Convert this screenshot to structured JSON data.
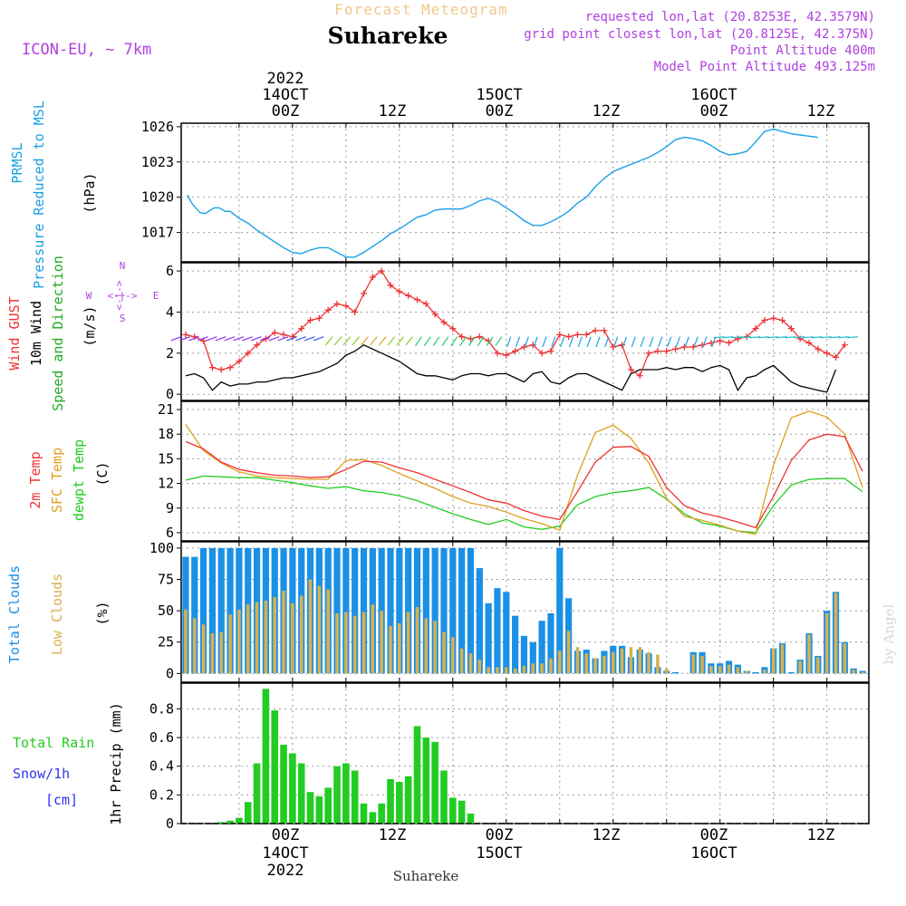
{
  "header": {
    "product_title": "Forecast Meteogram",
    "location": "Suhareke",
    "model": "ICON-EU, ~ 7km",
    "requested": "requested lon,lat (20.8253E, 42.3579N)",
    "grid_point": "grid point closest lon,lat (20.8125E, 42.375N)",
    "point_altitude": "Point Altitude 400m",
    "model_altitude": "Model Point Altitude 493.125m",
    "footer_location": "Suhareke",
    "credit": "by Angel"
  },
  "colors": {
    "pressure": "#1aa0e6",
    "gust": "#ee3333",
    "wind": "#000000",
    "t2m": "#ee3333",
    "sfc": "#e0a020",
    "dewpt": "#22cc22",
    "total_clouds": "#1a90e6",
    "low_clouds": "#d8b050",
    "rain": "#22cc22",
    "snow": "#3333ee",
    "label_purple": "#b040e0"
  },
  "time_axis": {
    "top": [
      {
        "h": 0,
        "l1": "2022",
        "l2": "14OCT",
        "l3": "00Z"
      },
      {
        "h": 12,
        "l3": "12Z"
      },
      {
        "h": 24,
        "l2": "15OCT",
        "l3": "00Z"
      },
      {
        "h": 36,
        "l3": "12Z"
      },
      {
        "h": 48,
        "l2": "16OCT",
        "l3": "00Z"
      },
      {
        "h": 60,
        "l3": "12Z"
      }
    ],
    "bottom": [
      {
        "h": 0,
        "l1": "00Z",
        "l2": "14OCT",
        "l3": "2022"
      },
      {
        "h": 12,
        "l1": "12Z"
      },
      {
        "h": 24,
        "l1": "00Z",
        "l2": "15OCT"
      },
      {
        "h": 36,
        "l1": "12Z"
      },
      {
        "h": 48,
        "l1": "00Z",
        "l2": "16OCT"
      },
      {
        "h": 60,
        "l1": "12Z"
      }
    ]
  },
  "panel_labels": {
    "pressure": {
      "name": "PRMSL",
      "desc": "Pressure Reduced to MSL",
      "unit": "(hPa)"
    },
    "wind": {
      "gust": "Wind GUST",
      "wind10": "10m Wind",
      "dir": "Speed and Direction",
      "unit": "(m/s)",
      "compass": {
        "n": "N",
        "s": "S",
        "w": "W",
        "e": "E",
        "arrows": "<-|->"
      }
    },
    "temp": {
      "t2m": "2m Temp",
      "sfc": "SFC Temp",
      "dewpt": "dewpt Temp",
      "unit": "(C)"
    },
    "clouds": {
      "total": "Total Clouds",
      "low": "Low Clouds",
      "unit": "(%)"
    },
    "precip": {
      "rain": "Total  Rain",
      "snow": "Snow/1h",
      "snow_unit": "[cm]",
      "axis": "1hr Precip (mm)"
    }
  },
  "chart_data": [
    {
      "type": "line",
      "title": "PRMSL Pressure Reduced to MSL",
      "ylabel": "(hPa)",
      "ylim": [
        1014.5,
        1026.3
      ],
      "yticks": [
        1017,
        1020,
        1023,
        1026
      ],
      "x_hours": [
        -11.8,
        -11.4,
        -11,
        -10.4,
        -9.8,
        -9.2,
        -8.8,
        -8.2,
        -7.6,
        -7,
        -6,
        -5,
        -4,
        -3,
        -2.4,
        -1.8,
        -1,
        0,
        1,
        2,
        3,
        4,
        5,
        6,
        7,
        8,
        9,
        10,
        11,
        12,
        13,
        14,
        15,
        16,
        17,
        18,
        19,
        20,
        21,
        22,
        23,
        24,
        25,
        26,
        27,
        28,
        29,
        30,
        31,
        32,
        33,
        34,
        35,
        36,
        37,
        38,
        39,
        40,
        41,
        42,
        43,
        44,
        45,
        46,
        47,
        48,
        49,
        50,
        51,
        52,
        53,
        54,
        55,
        56,
        57,
        58,
        59,
        60,
        61,
        62,
        63,
        64,
        65
      ],
      "series": [
        {
          "name": "PRMSL",
          "values": [
            1020.2,
            1019.6,
            1019.2,
            1018.7,
            1018.6,
            1018.9,
            1019.1,
            1019.1,
            1018.8,
            1018.8,
            1018.2,
            1017.8,
            1017.2,
            1016.7,
            1016.4,
            1016.1,
            1015.7,
            1015.3,
            1015.2,
            1015.5,
            1015.7,
            1015.7,
            1015.3,
            1014.9,
            1014.9,
            1015.3,
            1015.8,
            1016.3,
            1016.9,
            1017.3,
            1017.8,
            1018.3,
            1018.5,
            1018.9,
            1019.0,
            1019.0,
            1019.0,
            1019.3,
            1019.7,
            1019.9,
            1019.6,
            1019.1,
            1018.6,
            1018.0,
            1017.6,
            1017.6,
            1017.9,
            1018.3,
            1018.8,
            1019.5,
            1020.0,
            1020.9,
            1021.6,
            1022.2,
            1022.5,
            1022.8,
            1023.1,
            1023.4,
            1023.8,
            1024.3,
            1024.9,
            1025.1,
            1025.0,
            1024.8,
            1024.4,
            1023.9,
            1023.6,
            1023.7,
            1023.9,
            1024.7,
            1025.6,
            1025.8,
            1025.6,
            1025.4,
            1025.3,
            1025.2,
            1025.1
          ]
        }
      ]
    },
    {
      "type": "line",
      "title": "Wind GUST / 10m Wind Speed and Direction",
      "ylabel": "(m/s)",
      "ylim": [
        -0.3,
        6.4
      ],
      "yticks": [
        0,
        2,
        4,
        6
      ],
      "x_hours": [
        -12,
        -11,
        -10,
        -9,
        -8,
        -7,
        -6,
        -5,
        -4,
        -3,
        -2,
        -1,
        0,
        1,
        2,
        3,
        4,
        5,
        6,
        7,
        8,
        9,
        10,
        11,
        12,
        13,
        14,
        15,
        16,
        17,
        18,
        19,
        20,
        21,
        22,
        23,
        24,
        25,
        26,
        27,
        28,
        29,
        30,
        31,
        32,
        33,
        34,
        35,
        36,
        37,
        38,
        39,
        40,
        41,
        42,
        43,
        44,
        45,
        46,
        47,
        48,
        49,
        50,
        51,
        52,
        53,
        54,
        55,
        56,
        57,
        58,
        59,
        60,
        61,
        62,
        63,
        64
      ],
      "series": [
        {
          "name": "Wind GUST",
          "values": [
            2.9,
            2.8,
            2.6,
            1.3,
            1.2,
            1.3,
            1.6,
            2.0,
            2.4,
            2.7,
            3.0,
            2.9,
            2.8,
            3.2,
            3.6,
            3.7,
            4.1,
            4.4,
            4.3,
            4.0,
            4.9,
            5.7,
            6.0,
            5.3,
            5.0,
            4.8,
            4.6,
            4.4,
            3.9,
            3.5,
            3.2,
            2.8,
            2.7,
            2.8,
            2.6,
            2.0,
            1.9,
            2.1,
            2.3,
            2.4,
            2.0,
            2.1,
            2.9,
            2.8,
            2.9,
            2.9,
            3.1,
            3.1,
            2.3,
            2.4,
            1.2,
            0.9,
            2.0,
            2.1,
            2.1,
            2.2,
            2.3,
            2.3,
            2.4,
            2.5,
            2.6,
            2.5,
            2.7,
            2.8,
            3.2,
            3.6,
            3.7,
            3.6,
            3.2,
            2.7,
            2.5,
            2.2,
            2.0,
            1.8,
            2.4
          ]
        },
        {
          "name": "10m Wind",
          "values": [
            0.9,
            1.0,
            0.8,
            0.2,
            0.6,
            0.4,
            0.5,
            0.5,
            0.6,
            0.6,
            0.7,
            0.8,
            0.8,
            0.9,
            1.0,
            1.1,
            1.3,
            1.5,
            1.9,
            2.1,
            2.4,
            2.2,
            2.0,
            1.8,
            1.6,
            1.3,
            1.0,
            0.9,
            0.9,
            0.8,
            0.7,
            0.9,
            1.0,
            1.0,
            0.9,
            1.0,
            1.0,
            0.8,
            0.6,
            1.0,
            1.1,
            0.6,
            0.5,
            0.8,
            1.0,
            1.0,
            0.8,
            0.6,
            0.4,
            0.2,
            1.0,
            1.2,
            1.2,
            1.2,
            1.3,
            1.2,
            1.3,
            1.3,
            1.1,
            1.3,
            1.4,
            1.2,
            0.2,
            0.8,
            0.9,
            1.2,
            1.4,
            1.0,
            0.6,
            0.4,
            0.3,
            0.2,
            0.1,
            1.2
          ]
        }
      ]
    },
    {
      "type": "line",
      "title": "2m Temp / SFC Temp / dewpt Temp",
      "ylabel": "(C)",
      "ylim": [
        5,
        22
      ],
      "yticks": [
        6,
        9,
        12,
        15,
        18,
        21
      ],
      "x_hours": [
        -12,
        -10,
        -8,
        -6,
        -4,
        -2,
        0,
        2,
        4,
        6,
        8,
        10,
        12,
        14,
        16,
        18,
        20,
        22,
        24,
        26,
        28,
        30,
        32,
        34,
        36,
        38,
        40,
        42,
        44,
        46,
        48,
        50,
        52,
        54,
        56,
        58,
        60,
        62,
        64
      ],
      "series": [
        {
          "name": "2m Temp",
          "values": [
            17.1,
            16.2,
            14.6,
            13.7,
            13.3,
            13.0,
            12.9,
            12.7,
            12.8,
            13.7,
            14.7,
            14.6,
            13.9,
            13.3,
            12.5,
            11.7,
            10.9,
            10.0,
            9.6,
            8.7,
            8.0,
            7.6,
            11.0,
            14.6,
            16.4,
            16.5,
            15.3,
            11.5,
            9.3,
            8.4,
            7.9,
            7.3,
            6.6,
            10.4,
            14.8,
            17.3,
            18.0,
            17.7,
            13.5
          ]
        },
        {
          "name": "SFC Temp",
          "values": [
            19.2,
            16.0,
            14.5,
            13.4,
            12.9,
            12.7,
            12.6,
            12.5,
            12.5,
            14.8,
            14.9,
            14.2,
            13.2,
            12.3,
            11.4,
            10.4,
            9.6,
            9.2,
            8.5,
            7.7,
            7.1,
            6.3,
            13.0,
            18.2,
            19.1,
            17.5,
            14.5,
            10.2,
            8.0,
            7.5,
            6.9,
            6.2,
            5.8,
            14.2,
            20.0,
            20.8,
            20.1,
            18.0,
            11.5
          ]
        },
        {
          "name": "dewpt Temp",
          "values": [
            12.4,
            12.9,
            12.8,
            12.7,
            12.7,
            12.4,
            12.1,
            11.7,
            11.4,
            11.6,
            11.1,
            10.9,
            10.5,
            9.9,
            9.1,
            8.3,
            7.6,
            7.0,
            7.6,
            6.7,
            6.4,
            6.8,
            9.4,
            10.4,
            10.9,
            11.1,
            11.5,
            10.1,
            8.3,
            7.2,
            6.8,
            6.2,
            6.0,
            9.3,
            11.8,
            12.5,
            12.6,
            12.6,
            11.0
          ]
        }
      ]
    },
    {
      "type": "bar",
      "title": "Total Clouds / Low Clouds",
      "ylabel": "(%)",
      "ylim": [
        -7,
        105
      ],
      "yticks": [
        0,
        25,
        50,
        75,
        100
      ],
      "x_hours": [
        -12,
        -11,
        -10,
        -9,
        -8,
        -7,
        -6,
        -5,
        -4,
        -3,
        -2,
        -1,
        0,
        1,
        2,
        3,
        4,
        5,
        6,
        7,
        8,
        9,
        10,
        11,
        12,
        13,
        14,
        15,
        16,
        17,
        18,
        19,
        20,
        21,
        22,
        23,
        24,
        25,
        26,
        27,
        28,
        29,
        30,
        31,
        32,
        33,
        34,
        35,
        36,
        37,
        38,
        39,
        40,
        41,
        42,
        43,
        44,
        45,
        46,
        47,
        48,
        49,
        50,
        51,
        52,
        53,
        54,
        55,
        56,
        57,
        58,
        59,
        60,
        61,
        62,
        63,
        64
      ],
      "series": [
        {
          "name": "Total Clouds",
          "values": [
            93,
            93,
            100,
            100,
            100,
            100,
            100,
            100,
            100,
            100,
            100,
            100,
            100,
            100,
            100,
            100,
            100,
            100,
            100,
            100,
            100,
            100,
            100,
            100,
            100,
            100,
            100,
            100,
            100,
            100,
            100,
            100,
            100,
            84,
            56,
            68,
            65,
            46,
            30,
            25,
            42,
            48,
            100,
            60,
            18,
            19,
            12,
            18,
            22,
            22,
            13,
            19,
            16,
            5,
            2,
            1,
            0,
            17,
            17,
            8,
            8,
            10,
            7,
            2,
            1,
            5,
            20,
            24,
            1,
            11,
            32,
            14,
            50,
            65,
            25,
            4,
            2
          ]
        },
        {
          "name": "Low Clouds",
          "values": [
            51,
            44,
            39,
            32,
            33,
            47,
            51,
            55,
            57,
            58,
            61,
            66,
            56,
            62,
            75,
            70,
            67,
            48,
            49,
            46,
            49,
            55,
            50,
            38,
            40,
            49,
            53,
            44,
            42,
            33,
            29,
            20,
            16,
            11,
            5,
            5,
            5,
            4,
            6,
            8,
            8,
            12,
            18,
            34,
            21,
            16,
            12,
            14,
            17,
            20,
            21,
            21,
            17,
            15,
            4,
            0,
            0,
            15,
            14,
            6,
            6,
            7,
            5,
            2,
            0,
            3,
            20,
            23,
            0,
            10,
            31,
            13,
            48,
            64,
            24,
            3,
            1
          ]
        }
      ]
    },
    {
      "type": "bar",
      "title": "Total Rain / Snow/1h",
      "ylabel": "1hr Precip (mm)",
      "ylim": [
        0,
        0.98
      ],
      "yticks": [
        0,
        0.2,
        0.4,
        0.6,
        0.8
      ],
      "ytick_labels": [
        "0",
        "0.2",
        "0.4",
        "0.6",
        "0.8"
      ],
      "x_hours": [
        -8,
        -7,
        -6,
        -5,
        -4,
        -3,
        -2,
        -1,
        0,
        1,
        2,
        3,
        4,
        5,
        6,
        7,
        8,
        9,
        10,
        11,
        12,
        13,
        14,
        15,
        16,
        17,
        18,
        19,
        20
      ],
      "series": [
        {
          "name": "Total Rain",
          "values": [
            0.01,
            0.02,
            0.04,
            0.15,
            0.42,
            0.94,
            0.79,
            0.55,
            0.49,
            0.42,
            0.22,
            0.19,
            0.25,
            0.4,
            0.42,
            0.37,
            0.14,
            0.08,
            0.14,
            0.31,
            0.29,
            0.33,
            0.68,
            0.6,
            0.57,
            0.37,
            0.18,
            0.16,
            0.07
          ]
        },
        {
          "name": "Snow/1h",
          "values": [
            0,
            0,
            0,
            0,
            0,
            0,
            0,
            0,
            0,
            0,
            0,
            0,
            0,
            0,
            0,
            0,
            0,
            0,
            0,
            0,
            0,
            0,
            0,
            0,
            0,
            0,
            0,
            0,
            0
          ]
        }
      ]
    }
  ]
}
